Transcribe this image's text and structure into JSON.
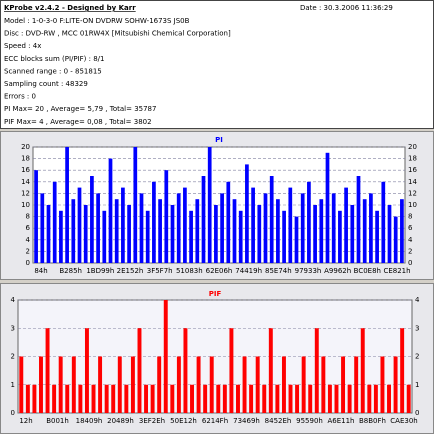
{
  "header": {
    "title": "KProbe v2.4.2 - Designed by Karr",
    "date": "Date : 30.3.2006 11:36:29",
    "lines": [
      "Model : 1-0-3-0 F:LITE-ON DVDRW SOHW-1673S JS0B",
      "Disc : DVD-RW , MCC 01RW4X  [Mitsubishi Chemical Corporation]",
      "Speed : 4x",
      "ECC blocks sum (PI/PIF) : 8/1",
      "Scanned range : 0 - 851815",
      "Sampling count : 48329",
      "Errors : 0",
      "PI Max= 20 , Average= 5,79 , Total= 35787",
      "PIF Max= 4 , Average= 0,08 , Total= 3802"
    ]
  },
  "chart_data": [
    {
      "type": "bar",
      "title": "PI",
      "color": "#0000ff",
      "ylim": [
        0,
        20
      ],
      "yticks": [
        0,
        2,
        4,
        6,
        8,
        10,
        12,
        14,
        16,
        18,
        20
      ],
      "grid": true,
      "x_labels": [
        "84h",
        "B285h",
        "1BD99h",
        "2E152h",
        "3F5F7h",
        "51083h",
        "62E06h",
        "74419h",
        "85E74h",
        "97933h",
        "A9962h",
        "BC0E8h",
        "CE821h"
      ],
      "values": [
        16,
        12,
        10,
        14,
        9,
        20,
        11,
        13,
        10,
        15,
        12,
        9,
        18,
        11,
        13,
        10,
        20,
        12,
        9,
        14,
        11,
        16,
        10,
        12,
        13,
        9,
        11,
        15,
        20,
        10,
        12,
        14,
        11,
        9,
        17,
        13,
        10,
        12,
        15,
        11,
        9,
        13,
        8,
        12,
        14,
        10,
        11,
        19,
        12,
        9,
        13,
        10,
        15,
        11,
        12,
        9,
        14,
        10,
        8,
        11
      ]
    },
    {
      "type": "bar",
      "title": "PIF",
      "color": "#ff0000",
      "ylim": [
        0,
        4
      ],
      "yticks": [
        0,
        1,
        2,
        3,
        4
      ],
      "grid": true,
      "x_labels": [
        "12h",
        "B001h",
        "18409h",
        "20489h",
        "3EF2Eh",
        "50E12h",
        "6214Fh",
        "73469h",
        "8452Eh",
        "95590h",
        "A6E11h",
        "B8B0Fh",
        "CAE30h"
      ],
      "values": [
        2,
        1,
        1,
        2,
        3,
        1,
        2,
        1,
        2,
        1,
        3,
        1,
        2,
        1,
        1,
        2,
        1,
        2,
        3,
        1,
        1,
        2,
        4,
        1,
        2,
        3,
        1,
        2,
        1,
        2,
        1,
        1,
        3,
        1,
        2,
        1,
        2,
        1,
        3,
        1,
        2,
        1,
        1,
        2,
        1,
        3,
        2,
        1,
        1,
        2,
        1,
        2,
        3,
        1,
        1,
        2,
        1,
        2,
        3,
        1
      ]
    }
  ]
}
